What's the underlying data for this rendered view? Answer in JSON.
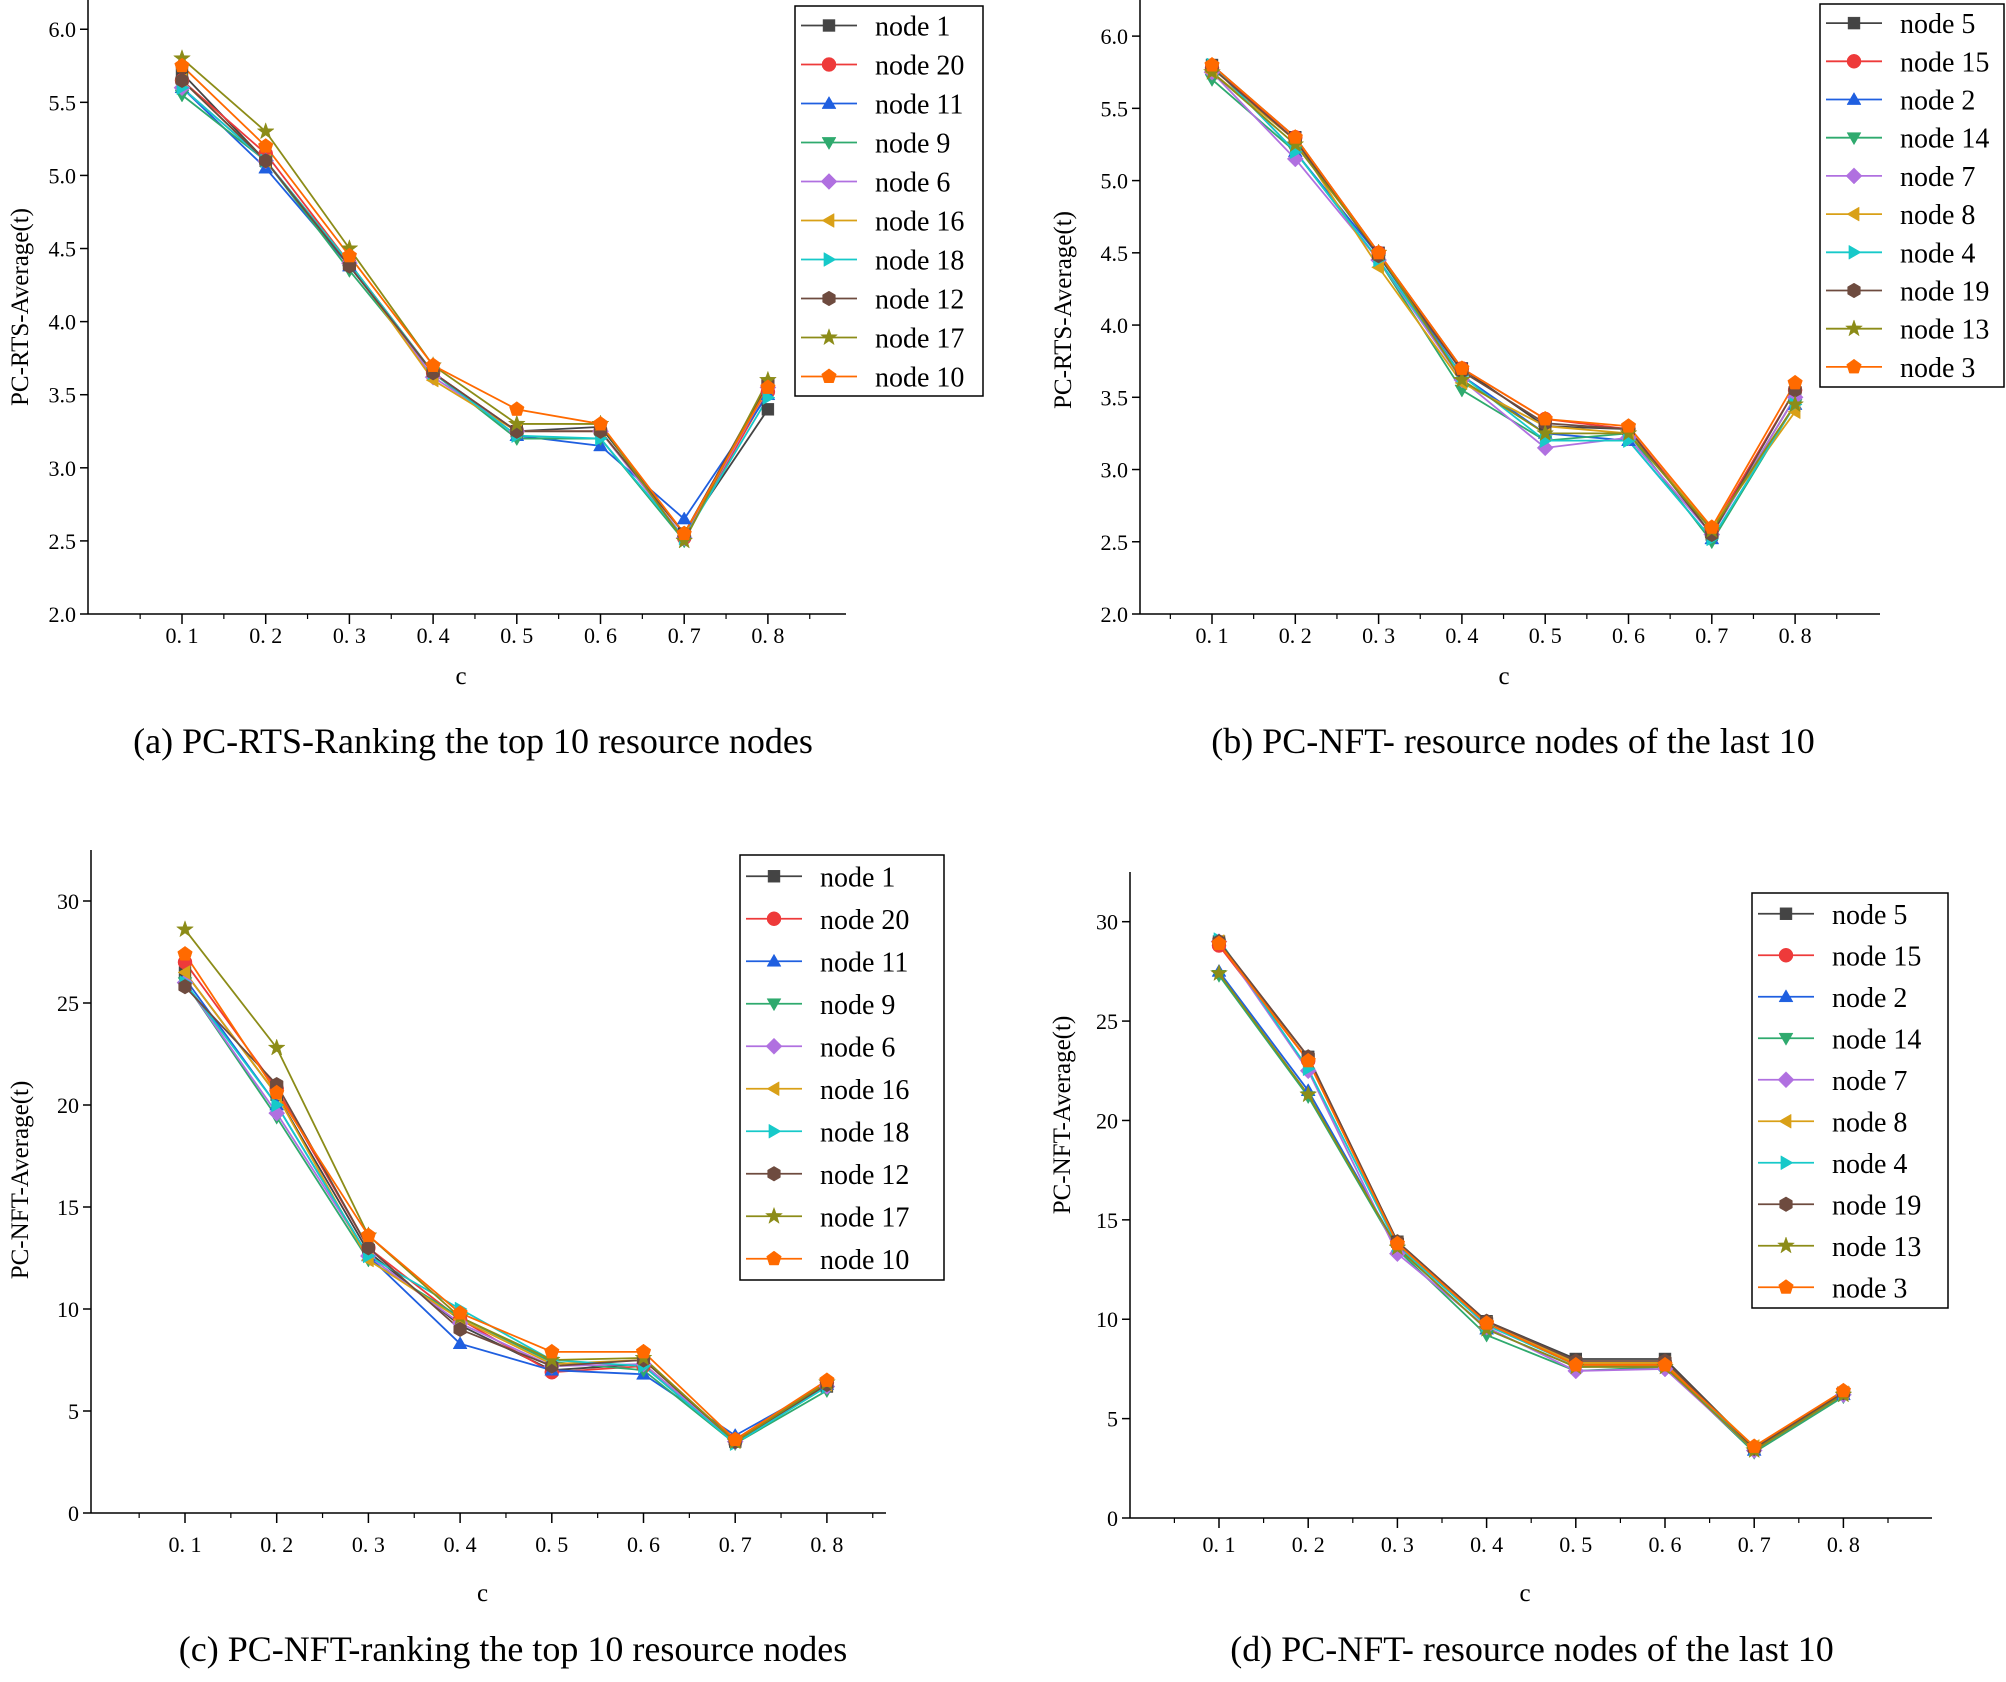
{
  "chart_data": [
    {
      "id": "a",
      "type": "line",
      "caption": "(a) PC-RTS-Ranking the top 10 resource nodes",
      "xlabel": "c",
      "ylabel": "PC-RTS-Average(t)",
      "categories": [
        "0.1",
        "0.2",
        "0.3",
        "0.4",
        "0.5",
        "0.6",
        "0.7",
        "0.8"
      ],
      "ylim": [
        2.0,
        6.2
      ],
      "yticks": [
        2.0,
        2.5,
        3.0,
        3.5,
        4.0,
        4.5,
        5.0,
        5.5,
        6.0
      ],
      "ytick_labels": [
        "2.0",
        "2.5",
        "3.0",
        "3.5",
        "4.0",
        "4.5",
        "5.0",
        "5.5",
        "6.0"
      ],
      "xtick_labels": [
        "0. 1",
        "0. 2",
        "0. 3",
        "0. 4",
        "0. 5",
        "0. 6",
        "0. 7",
        "0. 8"
      ],
      "legend_position": "top-right",
      "series": [
        {
          "name": "node 1",
          "color": "#444444",
          "marker": "square",
          "values": [
            5.7,
            5.1,
            4.4,
            3.65,
            3.25,
            3.28,
            2.55,
            3.4
          ]
        },
        {
          "name": "node 20",
          "color": "#ee3a3a",
          "marker": "circle",
          "values": [
            5.65,
            5.15,
            4.4,
            3.65,
            3.25,
            3.25,
            2.52,
            3.52
          ]
        },
        {
          "name": "node 11",
          "color": "#1f5fe0",
          "marker": "triangle",
          "values": [
            5.6,
            5.05,
            4.38,
            3.65,
            3.22,
            3.15,
            2.65,
            3.5
          ]
        },
        {
          "name": "node 9",
          "color": "#2faa6e",
          "marker": "tri-down",
          "values": [
            5.55,
            5.1,
            4.35,
            3.65,
            3.2,
            3.2,
            2.5,
            3.58
          ]
        },
        {
          "name": "node 6",
          "color": "#b070e0",
          "marker": "diamond",
          "values": [
            5.6,
            5.1,
            4.4,
            3.62,
            3.25,
            3.25,
            2.52,
            3.55
          ]
        },
        {
          "name": "node 16",
          "color": "#d9a017",
          "marker": "tri-left",
          "values": [
            5.65,
            5.1,
            4.4,
            3.6,
            3.25,
            3.25,
            2.55,
            3.55
          ]
        },
        {
          "name": "node 18",
          "color": "#17c9c9",
          "marker": "tri-right",
          "values": [
            5.6,
            5.1,
            4.4,
            3.65,
            3.22,
            3.2,
            2.52,
            3.48
          ]
        },
        {
          "name": "node 12",
          "color": "#6e4b3f",
          "marker": "hexagon",
          "values": [
            5.65,
            5.1,
            4.38,
            3.65,
            3.25,
            3.25,
            2.55,
            3.58
          ]
        },
        {
          "name": "node 17",
          "color": "#8c8c18",
          "marker": "star",
          "values": [
            5.8,
            5.3,
            4.5,
            3.7,
            3.3,
            3.3,
            2.5,
            3.6
          ]
        },
        {
          "name": "node 10",
          "color": "#ff6a00",
          "marker": "pentagon",
          "values": [
            5.75,
            5.2,
            4.45,
            3.7,
            3.4,
            3.3,
            2.55,
            3.55
          ]
        }
      ]
    },
    {
      "id": "b",
      "type": "line",
      "caption": "(b) PC-NFT- resource nodes of the last 10",
      "xlabel": "c",
      "ylabel": "PC-RTS-Average(t)",
      "categories": [
        "0.1",
        "0.2",
        "0.3",
        "0.4",
        "0.5",
        "0.6",
        "0.7",
        "0.8"
      ],
      "ylim": [
        2.0,
        6.25
      ],
      "yticks": [
        2.0,
        2.5,
        3.0,
        3.5,
        4.0,
        4.5,
        5.0,
        5.5,
        6.0
      ],
      "ytick_labels": [
        "2.0",
        "2.5",
        "3.0",
        "3.5",
        "4.0",
        "4.5",
        "5.0",
        "5.5",
        "6.0"
      ],
      "xtick_labels": [
        "0. 1",
        "0. 2",
        "0. 3",
        "0. 4",
        "0. 5",
        "0. 6",
        "0. 7",
        "0. 8"
      ],
      "legend_position": "top-right",
      "series": [
        {
          "name": "node 5",
          "color": "#444444",
          "marker": "square",
          "values": [
            5.8,
            5.3,
            4.5,
            3.7,
            3.3,
            3.28,
            2.55,
            3.5
          ]
        },
        {
          "name": "node 15",
          "color": "#ee3a3a",
          "marker": "circle",
          "values": [
            5.78,
            5.3,
            4.5,
            3.7,
            3.35,
            3.28,
            2.58,
            3.55
          ]
        },
        {
          "name": "node 2",
          "color": "#1f5fe0",
          "marker": "triangle",
          "values": [
            5.8,
            5.2,
            4.48,
            3.65,
            3.25,
            3.2,
            2.52,
            3.45
          ]
        },
        {
          "name": "node 14",
          "color": "#2faa6e",
          "marker": "tri-down",
          "values": [
            5.7,
            5.2,
            4.45,
            3.55,
            3.2,
            3.25,
            2.5,
            3.45
          ]
        },
        {
          "name": "node 7",
          "color": "#b070e0",
          "marker": "diamond",
          "values": [
            5.75,
            5.15,
            4.45,
            3.62,
            3.15,
            3.22,
            2.55,
            3.5
          ]
        },
        {
          "name": "node 8",
          "color": "#d9a017",
          "marker": "tri-left",
          "values": [
            5.75,
            5.28,
            4.4,
            3.6,
            3.3,
            3.25,
            2.6,
            3.4
          ]
        },
        {
          "name": "node 4",
          "color": "#17c9c9",
          "marker": "tri-right",
          "values": [
            5.8,
            5.2,
            4.45,
            3.65,
            3.2,
            3.2,
            2.52,
            3.45
          ]
        },
        {
          "name": "node 19",
          "color": "#6e4b3f",
          "marker": "hexagon",
          "values": [
            5.78,
            5.28,
            4.48,
            3.68,
            3.32,
            3.28,
            2.55,
            3.55
          ]
        },
        {
          "name": "node 13",
          "color": "#8c8c18",
          "marker": "star",
          "values": [
            5.75,
            5.25,
            4.5,
            3.62,
            3.25,
            3.25,
            2.58,
            3.45
          ]
        },
        {
          "name": "node 3",
          "color": "#ff6a00",
          "marker": "pentagon",
          "values": [
            5.8,
            5.3,
            4.5,
            3.7,
            3.35,
            3.3,
            2.6,
            3.6
          ]
        }
      ]
    },
    {
      "id": "c",
      "type": "line",
      "caption": "(c) PC-NFT-ranking the top 10 resource nodes",
      "xlabel": "c",
      "ylabel": "PC-NFT-Average(t)",
      "categories": [
        "0.1",
        "0.2",
        "0.3",
        "0.4",
        "0.5",
        "0.6",
        "0.7",
        "0.8"
      ],
      "ylim": [
        0,
        32.5
      ],
      "yticks": [
        0,
        5,
        10,
        15,
        20,
        25,
        30
      ],
      "ytick_labels": [
        "0",
        "5",
        "10",
        "15",
        "20",
        "25",
        "30"
      ],
      "xtick_labels": [
        "0. 1",
        "0. 2",
        "0. 3",
        "0. 4",
        "0. 5",
        "0. 6",
        "0. 7",
        "0. 8"
      ],
      "legend_position": "top-right",
      "series": [
        {
          "name": "node 1",
          "color": "#444444",
          "marker": "square",
          "values": [
            26.5,
            20.5,
            12.8,
            9.2,
            7.0,
            7.3,
            3.5,
            6.2
          ]
        },
        {
          "name": "node 20",
          "color": "#ee3a3a",
          "marker": "circle",
          "values": [
            27.0,
            20.8,
            13.0,
            9.5,
            6.9,
            7.2,
            3.6,
            6.4
          ]
        },
        {
          "name": "node 11",
          "color": "#1f5fe0",
          "marker": "triangle",
          "values": [
            26.2,
            20.0,
            12.6,
            8.3,
            7.0,
            6.8,
            3.8,
            6.3
          ]
        },
        {
          "name": "node 9",
          "color": "#2faa6e",
          "marker": "tri-down",
          "values": [
            26.0,
            19.4,
            12.4,
            9.6,
            7.4,
            7.0,
            3.4,
            6.0
          ]
        },
        {
          "name": "node 6",
          "color": "#b070e0",
          "marker": "diamond",
          "values": [
            26.0,
            19.6,
            12.6,
            9.3,
            7.2,
            7.3,
            3.5,
            6.2
          ]
        },
        {
          "name": "node 16",
          "color": "#d9a017",
          "marker": "tri-left",
          "values": [
            26.5,
            20.5,
            12.4,
            9.5,
            7.3,
            7.5,
            3.5,
            6.3
          ]
        },
        {
          "name": "node 18",
          "color": "#17c9c9",
          "marker": "tri-right",
          "values": [
            26.0,
            20.0,
            12.6,
            10.0,
            7.5,
            7.2,
            3.4,
            6.2
          ]
        },
        {
          "name": "node 12",
          "color": "#6e4b3f",
          "marker": "hexagon",
          "values": [
            25.8,
            21.0,
            13.0,
            9.0,
            7.2,
            7.5,
            3.5,
            6.3
          ]
        },
        {
          "name": "node 17",
          "color": "#8c8c18",
          "marker": "star",
          "values": [
            28.6,
            22.8,
            13.6,
            9.6,
            7.5,
            7.6,
            3.5,
            6.4
          ]
        },
        {
          "name": "node 10",
          "color": "#ff6a00",
          "marker": "pentagon",
          "values": [
            27.4,
            20.6,
            13.6,
            9.8,
            7.9,
            7.9,
            3.6,
            6.5
          ]
        }
      ]
    },
    {
      "id": "d",
      "type": "line",
      "caption": "(d) PC-NFT- resource nodes of the last 10",
      "xlabel": "c",
      "ylabel": "PC-NFT-Average(t)",
      "categories": [
        "0.1",
        "0.2",
        "0.3",
        "0.4",
        "0.5",
        "0.6",
        "0.7",
        "0.8"
      ],
      "ylim": [
        0,
        32.5
      ],
      "yticks": [
        0,
        5,
        10,
        15,
        20,
        25,
        30
      ],
      "ytick_labels": [
        "0",
        "5",
        "10",
        "15",
        "20",
        "25",
        "30"
      ],
      "xtick_labels": [
        "0. 1",
        "0. 2",
        "0. 3",
        "0. 4",
        "0. 5",
        "0. 6",
        "0. 7",
        "0. 8"
      ],
      "legend_position": "top-right",
      "series": [
        {
          "name": "node 5",
          "color": "#444444",
          "marker": "square",
          "values": [
            29.0,
            23.2,
            13.9,
            9.9,
            8.0,
            8.0,
            3.5,
            6.3
          ]
        },
        {
          "name": "node 15",
          "color": "#ee3a3a",
          "marker": "circle",
          "values": [
            28.8,
            23.0,
            13.8,
            9.8,
            7.8,
            7.8,
            3.5,
            6.3
          ]
        },
        {
          "name": "node 2",
          "color": "#1f5fe0",
          "marker": "triangle",
          "values": [
            27.5,
            21.5,
            13.6,
            9.5,
            7.6,
            7.7,
            3.4,
            6.2
          ]
        },
        {
          "name": "node 14",
          "color": "#2faa6e",
          "marker": "tri-down",
          "values": [
            27.3,
            21.2,
            13.5,
            9.2,
            7.4,
            7.6,
            3.3,
            6.1
          ]
        },
        {
          "name": "node 7",
          "color": "#b070e0",
          "marker": "diamond",
          "values": [
            29.0,
            22.5,
            13.3,
            9.6,
            7.4,
            7.5,
            3.4,
            6.2
          ]
        },
        {
          "name": "node 8",
          "color": "#d9a017",
          "marker": "tri-left",
          "values": [
            29.0,
            23.0,
            13.8,
            9.8,
            7.8,
            7.8,
            3.6,
            6.3
          ]
        },
        {
          "name": "node 4",
          "color": "#17c9c9",
          "marker": "tri-right",
          "values": [
            29.1,
            22.6,
            13.7,
            9.7,
            7.7,
            7.7,
            3.5,
            6.2
          ]
        },
        {
          "name": "node 19",
          "color": "#6e4b3f",
          "marker": "hexagon",
          "values": [
            29.0,
            23.2,
            13.9,
            9.9,
            7.9,
            7.9,
            3.5,
            6.3
          ]
        },
        {
          "name": "node 13",
          "color": "#8c8c18",
          "marker": "star",
          "values": [
            27.4,
            21.3,
            13.6,
            9.5,
            7.6,
            7.6,
            3.4,
            6.2
          ]
        },
        {
          "name": "node 3",
          "color": "#ff6a00",
          "marker": "pentagon",
          "values": [
            28.9,
            23.0,
            13.8,
            9.8,
            7.7,
            7.7,
            3.6,
            6.4
          ]
        }
      ]
    }
  ]
}
